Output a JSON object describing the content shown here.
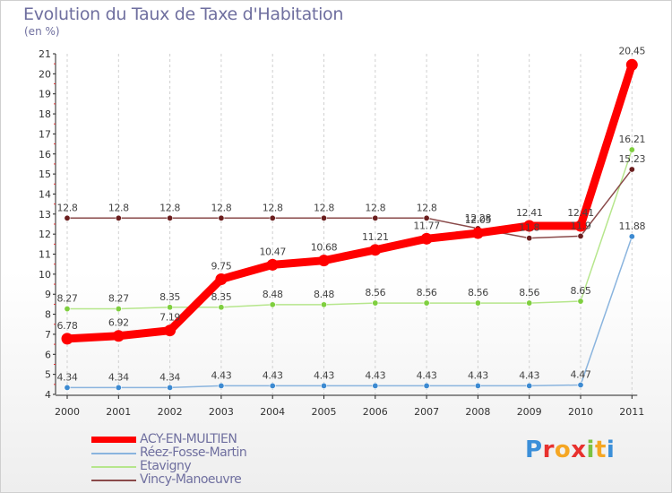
{
  "chart_data": {
    "type": "line",
    "title": "Evolution du Taux de Taxe d'Habitation",
    "ylabel": "(en %)",
    "xlabel": "",
    "categories": [
      "2000",
      "2001",
      "2002",
      "2003",
      "2004",
      "2005",
      "2006",
      "2007",
      "2008",
      "2009",
      "2010",
      "2011"
    ],
    "ylim": [
      4,
      21
    ],
    "yticks": [
      4,
      5,
      6,
      7,
      8,
      9,
      10,
      11,
      12,
      13,
      14,
      15,
      16,
      17,
      18,
      19,
      20,
      21
    ],
    "grid": "vertical dashed",
    "series": [
      {
        "name": "ACY-EN-MULTIEN",
        "color": "#ff0000",
        "emphasis": true,
        "values": [
          6.78,
          6.92,
          7.19,
          9.75,
          10.47,
          10.68,
          11.21,
          11.77,
          12.05,
          12.41,
          12.41,
          20.45
        ],
        "labels": [
          "6.78",
          "6.92",
          "7.19",
          "9.75",
          "10.47",
          "10.68",
          "11.21",
          "11.77",
          "12.05",
          "12.41",
          "12.41",
          "20.45"
        ]
      },
      {
        "name": "Réez-Fosse-Martin",
        "color": "#3d8ad1",
        "line_color": "#8ab4de",
        "values": [
          4.34,
          4.34,
          4.34,
          4.43,
          4.43,
          4.43,
          4.43,
          4.43,
          4.43,
          4.43,
          4.47,
          11.88
        ],
        "labels": [
          "4.34",
          "4.34",
          "4.34",
          "4.43",
          "4.43",
          "4.43",
          "4.43",
          "4.43",
          "4.43",
          "4.43",
          "4.47",
          "11.88"
        ]
      },
      {
        "name": "Etavigny",
        "color": "#7fcf3f",
        "line_color": "#b6e68c",
        "values": [
          8.27,
          8.27,
          8.35,
          8.35,
          8.48,
          8.48,
          8.56,
          8.56,
          8.56,
          8.56,
          8.65,
          16.21
        ],
        "labels": [
          "8.27",
          "8.27",
          "8.35",
          "8.35",
          "8.48",
          "8.48",
          "8.56",
          "8.56",
          "8.56",
          "8.56",
          "8.65",
          "16.21"
        ]
      },
      {
        "name": "Vincy-Manoeuvre",
        "color": "#6b1e1e",
        "line_color": "#8a4a4a",
        "values": [
          12.8,
          12.8,
          12.8,
          12.8,
          12.8,
          12.8,
          12.8,
          12.8,
          12.28,
          11.8,
          11.9,
          15.23
        ],
        "labels": [
          "12.8",
          "12.8",
          "12.8",
          "12.8",
          "12.8",
          "12.8",
          "12.8",
          "12.8",
          "12.28",
          "11.8",
          "11.9",
          "15.23"
        ]
      }
    ]
  },
  "legend": {
    "items": [
      {
        "label": "ACY-EN-MULTIEN",
        "color": "#ff0000"
      },
      {
        "label": "Réez-Fosse-Martin",
        "color": "#8ab4de"
      },
      {
        "label": "Etavigny",
        "color": "#b6e68c"
      },
      {
        "label": "Vincy-Manoeuvre",
        "color": "#8a4a4a"
      }
    ]
  },
  "logo": {
    "letters": [
      "P",
      "r",
      "o",
      "x",
      "i",
      "t",
      "i"
    ],
    "colors": [
      "#3b8fd9",
      "#e8312e",
      "#f5a623",
      "#e8312e",
      "#7cc242",
      "#f5a623",
      "#3b8fd9"
    ]
  }
}
